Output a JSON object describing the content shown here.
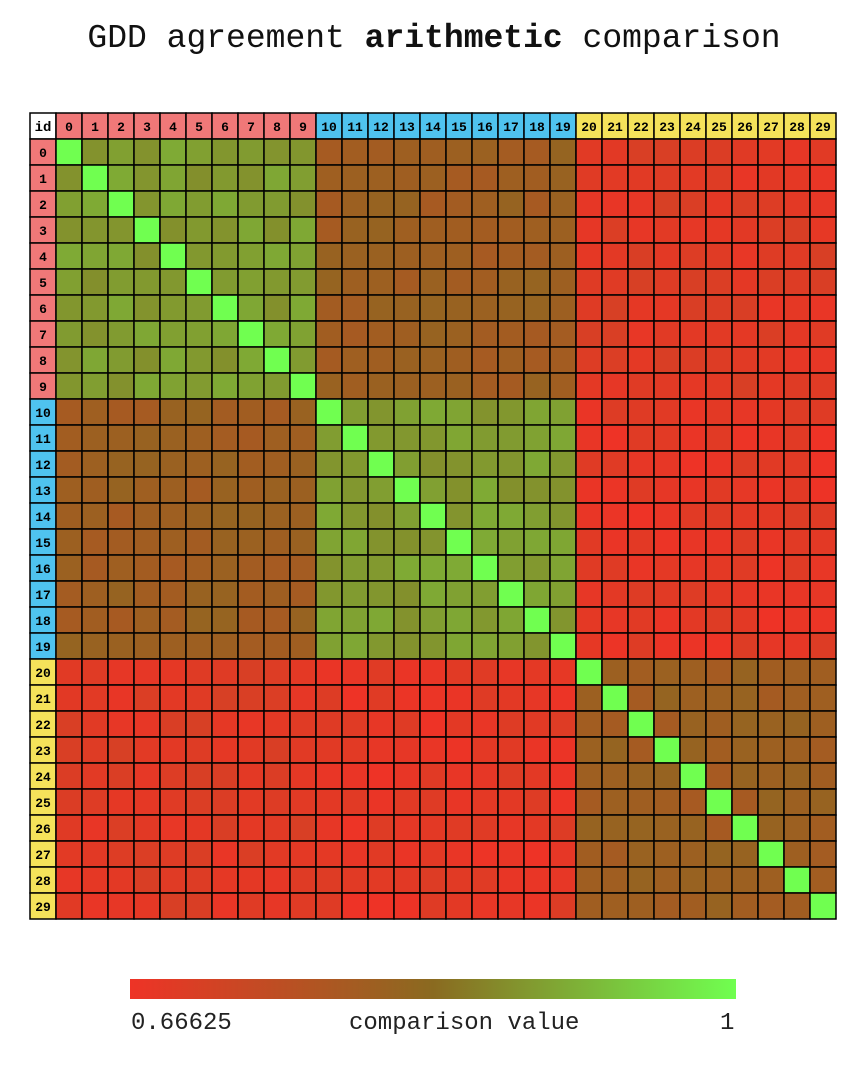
{
  "title": {
    "prefix": "GDD agreement ",
    "emphasis": "arithmetic",
    "suffix": " comparison"
  },
  "chart_data": {
    "type": "heatmap",
    "corner_label": "id",
    "ids": [
      0,
      1,
      2,
      3,
      4,
      5,
      6,
      7,
      8,
      9,
      10,
      11,
      12,
      13,
      14,
      15,
      16,
      17,
      18,
      19,
      20,
      21,
      22,
      23,
      24,
      25,
      26,
      27,
      28,
      29
    ],
    "groups": [
      {
        "ids": [
          0,
          1,
          2,
          3,
          4,
          5,
          6,
          7,
          8,
          9
        ],
        "color": "#f07878"
      },
      {
        "ids": [
          10,
          11,
          12,
          13,
          14,
          15,
          16,
          17,
          18,
          19
        ],
        "color": "#4fc3ef"
      },
      {
        "ids": [
          20,
          21,
          22,
          23,
          24,
          25,
          26,
          27,
          28,
          29
        ],
        "color": "#f5e25a"
      }
    ],
    "block_values": [
      [
        0.89,
        0.8,
        0.69
      ],
      [
        0.8,
        0.89,
        0.68
      ],
      [
        0.69,
        0.68,
        0.8
      ]
    ],
    "diagonal_value": 1,
    "color_scale": {
      "min": 0.66625,
      "max": 1,
      "min_label": "0.66625",
      "max_label": "1",
      "label": "comparison value",
      "min_color": "#ee3326",
      "mid_color": "#8a6a20",
      "max_color": "#70ff50"
    }
  }
}
